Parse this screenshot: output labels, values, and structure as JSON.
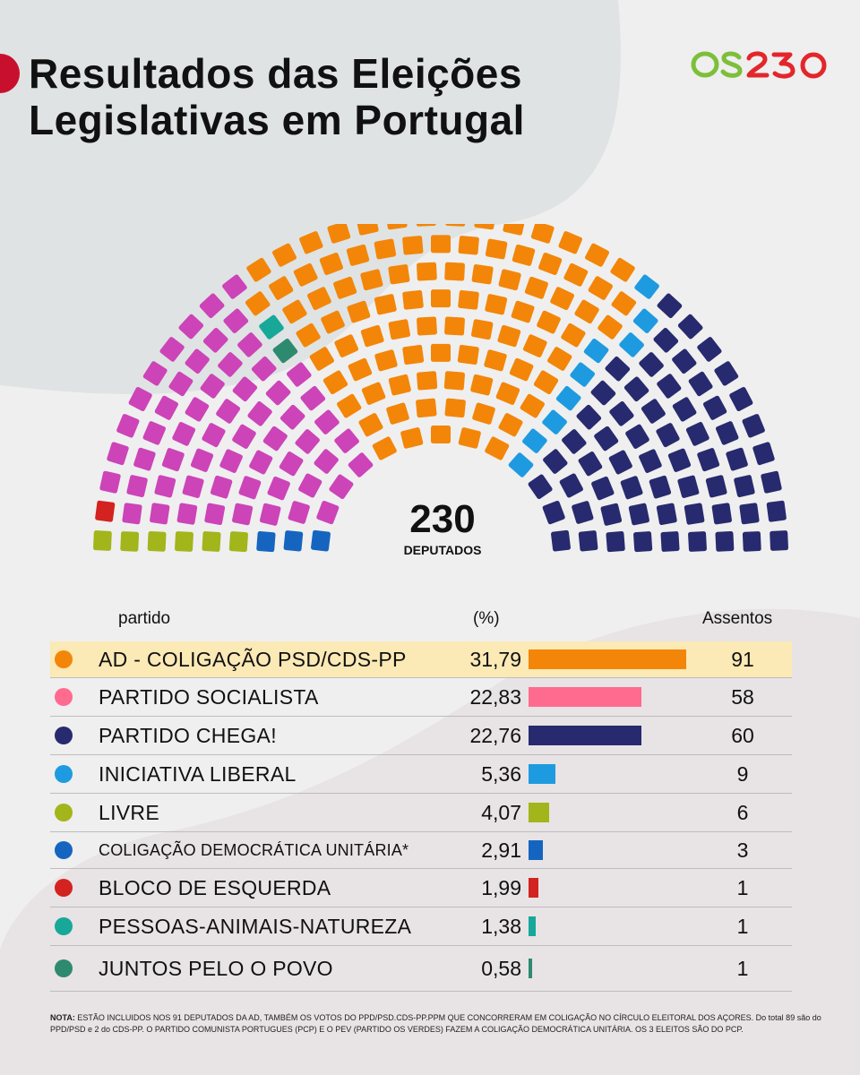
{
  "header": {
    "title_line1": "Resultados das Eleições",
    "title_line2": "Legislativas em Portugal",
    "logo_text": "OS230"
  },
  "colors": {
    "background": "#efefef",
    "blob": "#dfe3e3",
    "accent": "#c8102e",
    "highlight": "#fbe9b6"
  },
  "chart_data": [
    {
      "type": "parliament",
      "total_label": "230",
      "total_sublabel": "DEPUTADOS",
      "rows": 9,
      "order_left_to_right": [
        "LIVRE",
        "CDU",
        "BE",
        "PS",
        "JPP",
        "PAN",
        "AD",
        "IL",
        "CHEGA"
      ],
      "seats": {
        "LIVRE": 6,
        "CDU": 3,
        "BE": 1,
        "PS": 58,
        "JPP": 1,
        "PAN": 1,
        "AD": 91,
        "IL": 9,
        "CHEGA": 60
      },
      "party_colors": {
        "LIVRE": "#a2b51a",
        "CDU": "#1565c0",
        "BE": "#d3221f",
        "PS": "#cc44b8",
        "JPP": "#2e8a6e",
        "PAN": "#17a89a",
        "AD": "#f38608",
        "IL": "#1e9be0",
        "CHEGA": "#272a6e"
      }
    },
    {
      "type": "bar",
      "columns": {
        "party": "partido",
        "pct": "(%)",
        "seats": "Assentos"
      },
      "rows": [
        {
          "name": "AD - COLIGAÇÃO PSD/CDS-PP",
          "pct_label": "31,79",
          "pct": 31.79,
          "seats": "91",
          "color": "#f38608",
          "highlight": true
        },
        {
          "name": "PARTIDO SOCIALISTA",
          "pct_label": "22,83",
          "pct": 22.83,
          "seats": "58",
          "color": "#ff6b8f"
        },
        {
          "name": "PARTIDO CHEGA!",
          "pct_label": "22,76",
          "pct": 22.76,
          "seats": "60",
          "color": "#272a6e"
        },
        {
          "name": "INICIATIVA LIBERAL",
          "pct_label": "5,36",
          "pct": 5.36,
          "seats": "9",
          "color": "#1e9be0"
        },
        {
          "name": "LIVRE",
          "pct_label": "4,07",
          "pct": 4.07,
          "seats": "6",
          "color": "#a2b51a"
        },
        {
          "name": "COLIGAÇÃO DEMOCRÁTICA UNITÁRIA*",
          "pct_label": "2,91",
          "pct": 2.91,
          "seats": "3",
          "color": "#1565c0",
          "small": true
        },
        {
          "name": "BLOCO DE ESQUERDA",
          "pct_label": "1,99",
          "pct": 1.99,
          "seats": "1",
          "color": "#d3221f"
        },
        {
          "name": "PESSOAS-ANIMAIS-NATUREZA",
          "pct_label": "1,38",
          "pct": 1.38,
          "seats": "1",
          "color": "#17a89a"
        },
        {
          "name": "JUNTOS PELO O POVO",
          "pct_label": "0,58",
          "pct": 0.58,
          "seats": "1",
          "color": "#2e8a6e"
        }
      ]
    }
  ],
  "footer": {
    "note_label": "NOTA:",
    "note_text": "ESTÃO INCLUIDOS NOS 91 DEPUTADOS DA AD, TAMBÉM OS VOTOS DO PPD/PSD.CDS-PP.PPM QUE CONCORRERAM EM COLIGAÇÃO NO CÍRCULO ELEITORAL DOS AÇORES. Do total 89 são do PPD/PSD e 2 do CDS-PP. O PARTIDO COMUNISTA PORTUGUES (PCP) E O PEV (PARTIDO OS VERDES) FAZEM A COLIGAÇÃO DEMOCRÁTICA UNITÁRIA. OS 3 ELEITOS SÃO DO PCP."
  }
}
